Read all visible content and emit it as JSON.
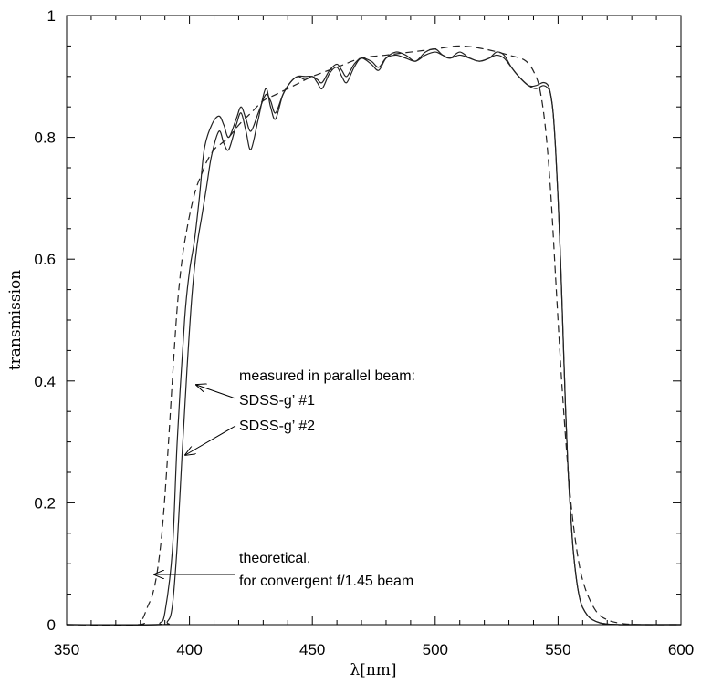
{
  "chart_data": {
    "type": "line",
    "xlabel": "λ[nm]",
    "ylabel": "transmission",
    "xlim": [
      350,
      600
    ],
    "ylim": [
      0,
      1
    ],
    "xticks": [
      350,
      400,
      450,
      500,
      550,
      600
    ],
    "yticks": [
      0,
      0.2,
      0.4,
      0.6,
      0.8,
      1
    ],
    "xtick_labels": [
      "350",
      "400",
      "450",
      "500",
      "550",
      "600"
    ],
    "ytick_labels": [
      "0",
      "0.2",
      "0.4",
      "0.6",
      "0.8",
      "1"
    ],
    "grid": false,
    "series": [
      {
        "style": "solid",
        "x": [
          350,
          385,
          388,
          390,
          393,
          395,
          398,
          400,
          402,
          404,
          406,
          409,
          412,
          414,
          416,
          419,
          421,
          423,
          425,
          428,
          431,
          433,
          435,
          438,
          441,
          444,
          447,
          450,
          452,
          454,
          457,
          460,
          462,
          464,
          467,
          470,
          474,
          477,
          480,
          484,
          488,
          492,
          496,
          500,
          503,
          506,
          510,
          514,
          518,
          522,
          525,
          528,
          531,
          534,
          538,
          541,
          544,
          546,
          547,
          548,
          549,
          550,
          551,
          552,
          553,
          554,
          555,
          556,
          557,
          558,
          559,
          560,
          562,
          564,
          567,
          570,
          575,
          580,
          585,
          590,
          600
        ],
        "y": [
          0,
          0,
          0.003,
          0.02,
          0.12,
          0.3,
          0.5,
          0.58,
          0.63,
          0.7,
          0.78,
          0.82,
          0.835,
          0.82,
          0.8,
          0.83,
          0.85,
          0.83,
          0.81,
          0.84,
          0.87,
          0.86,
          0.84,
          0.87,
          0.89,
          0.9,
          0.9,
          0.9,
          0.895,
          0.89,
          0.91,
          0.92,
          0.91,
          0.9,
          0.92,
          0.93,
          0.925,
          0.915,
          0.93,
          0.935,
          0.93,
          0.925,
          0.935,
          0.94,
          0.935,
          0.93,
          0.935,
          0.93,
          0.925,
          0.93,
          0.935,
          0.93,
          0.915,
          0.9,
          0.885,
          0.88,
          0.885,
          0.88,
          0.87,
          0.84,
          0.78,
          0.7,
          0.6,
          0.48,
          0.36,
          0.26,
          0.19,
          0.13,
          0.09,
          0.06,
          0.04,
          0.028,
          0.015,
          0.008,
          0.003,
          0.001,
          0,
          0,
          0,
          0,
          0
        ]
      },
      {
        "style": "solid",
        "x": [
          350,
          388,
          391,
          393,
          395,
          397,
          399,
          401,
          403,
          405,
          407,
          409,
          412,
          414,
          416,
          419,
          421,
          423,
          425,
          428,
          431,
          433,
          435,
          438,
          441,
          444,
          447,
          450,
          452,
          454,
          457,
          460,
          462,
          464,
          467,
          470,
          474,
          477,
          480,
          484,
          488,
          492,
          496,
          500,
          503,
          506,
          510,
          514,
          518,
          522,
          525,
          528,
          531,
          534,
          538,
          541,
          544,
          546,
          547,
          548,
          549,
          550,
          551,
          552,
          553,
          554,
          555,
          556,
          557,
          558,
          559,
          560,
          562,
          564,
          567,
          570,
          575,
          580,
          585,
          590,
          600
        ],
        "y": [
          0,
          0,
          0.005,
          0.03,
          0.13,
          0.28,
          0.42,
          0.54,
          0.62,
          0.67,
          0.72,
          0.77,
          0.81,
          0.79,
          0.78,
          0.82,
          0.84,
          0.81,
          0.78,
          0.83,
          0.88,
          0.85,
          0.83,
          0.87,
          0.89,
          0.9,
          0.895,
          0.9,
          0.89,
          0.88,
          0.905,
          0.915,
          0.9,
          0.89,
          0.915,
          0.93,
          0.92,
          0.91,
          0.93,
          0.94,
          0.935,
          0.925,
          0.94,
          0.945,
          0.935,
          0.93,
          0.94,
          0.93,
          0.925,
          0.93,
          0.94,
          0.935,
          0.915,
          0.9,
          0.885,
          0.885,
          0.89,
          0.885,
          0.87,
          0.84,
          0.78,
          0.7,
          0.6,
          0.48,
          0.36,
          0.26,
          0.19,
          0.13,
          0.09,
          0.06,
          0.04,
          0.028,
          0.015,
          0.008,
          0.003,
          0.001,
          0,
          0,
          0,
          0,
          0
        ]
      },
      {
        "style": "dashed",
        "x": [
          350,
          379,
          381,
          383,
          385,
          387,
          389,
          391,
          393,
          395,
          397,
          399,
          401,
          403,
          405,
          407,
          410,
          413,
          416,
          420,
          425,
          430,
          435,
          440,
          445,
          450,
          460,
          470,
          480,
          490,
          500,
          510,
          520,
          530,
          537,
          541,
          543,
          545,
          547,
          549,
          551,
          553,
          555,
          557,
          559,
          561,
          563,
          565,
          567,
          570,
          573,
          578,
          585,
          600
        ],
        "y": [
          0,
          0,
          0.01,
          0.03,
          0.05,
          0.09,
          0.16,
          0.27,
          0.4,
          0.52,
          0.6,
          0.65,
          0.69,
          0.72,
          0.74,
          0.76,
          0.78,
          0.79,
          0.8,
          0.82,
          0.84,
          0.86,
          0.87,
          0.88,
          0.89,
          0.9,
          0.915,
          0.93,
          0.935,
          0.94,
          0.945,
          0.95,
          0.945,
          0.935,
          0.925,
          0.9,
          0.87,
          0.81,
          0.71,
          0.57,
          0.43,
          0.31,
          0.21,
          0.14,
          0.09,
          0.06,
          0.04,
          0.025,
          0.015,
          0.008,
          0.004,
          0.001,
          0,
          0
        ]
      }
    ],
    "annotations": [
      {
        "text": "measured in parallel beam:",
        "arrow_to": [
          401.5,
          0.395
        ]
      },
      {
        "text": "SDSS-g’ #1",
        "arrow_to": [
          401.5,
          0.395
        ]
      },
      {
        "text": "SDSS-g’ #2",
        "arrow_to": [
          398.5,
          0.278
        ]
      },
      {
        "text": "theoretical,",
        "arrow_to": [
          387,
          0.082
        ]
      },
      {
        "text": "for convergent f/1.45 beam",
        "arrow_to": null
      }
    ]
  }
}
